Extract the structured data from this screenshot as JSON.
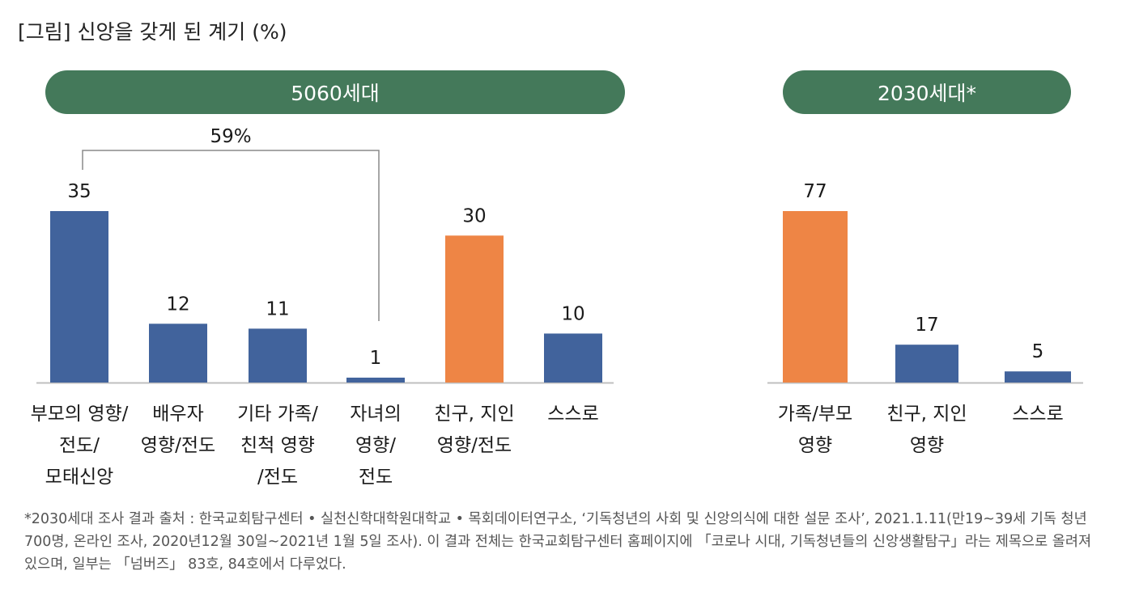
{
  "title": "[그림] 신앙을 갖게 된 계기 (%)",
  "colors": {
    "blue": "#41639c",
    "orange": "#ee8545",
    "pill": "#44795a",
    "bracket": "#8a8a8a",
    "axis": "#bfbfbf"
  },
  "chart_data": [
    {
      "type": "bar",
      "group_label": "5060세대",
      "categories": [
        "부모의 영향/\n전도/\n모태신앙",
        "배우자\n영향/전도",
        "기타 가족/\n친척 영향\n/전도",
        "자녀의\n영향/\n전도",
        "친구, 지인\n영향/전도",
        "스스로"
      ],
      "values": [
        35,
        12,
        11,
        1,
        30,
        10
      ],
      "highlight": [
        false,
        false,
        false,
        false,
        true,
        false
      ],
      "bracket_label": "59%",
      "bracket_span": [
        0,
        3
      ],
      "ylim": [
        0,
        35
      ]
    },
    {
      "type": "bar",
      "group_label": "2030세대*",
      "categories": [
        "가족/부모\n영향",
        "친구, 지인\n영향",
        "스스로"
      ],
      "values": [
        77,
        17,
        5
      ],
      "highlight": [
        true,
        false,
        false
      ],
      "ylim": [
        0,
        77
      ]
    }
  ],
  "footnote": "*2030세대 조사 결과 출처 : 한국교회탐구센터 • 실천신학대학원대학교 • 목회데이터연구소, ‘기독청년의 사회 및 신앙의식에 대한 설문 조사’, 2021.1.11(만19~39세 기독 청년 700명, 온라인 조사, 2020년12월 30일~2021년 1월 5일 조사). 이 결과 전체는 한국교회탐구센터 홈페이지에 「코로나 시대, 기독청년들의 신앙생활탐구」라는 제목으로 올려져 있으며, 일부는 「넘버즈」 83호, 84호에서 다루었다."
}
